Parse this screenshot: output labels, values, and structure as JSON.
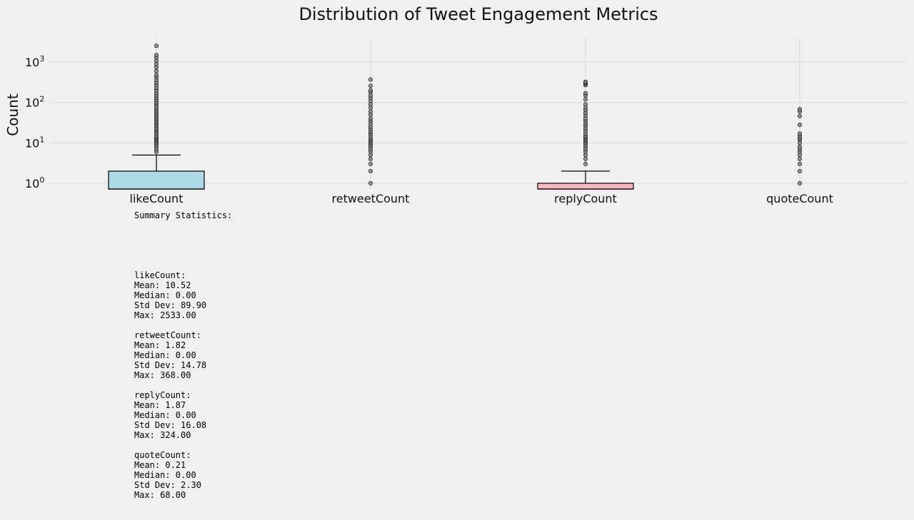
{
  "chart_data": {
    "type": "box",
    "title": "Distribution of Tweet Engagement Metrics",
    "xlabel": "",
    "ylabel": "Count",
    "yscale": "log",
    "ylim": [
      0.72,
      4000
    ],
    "yticks": [
      {
        "value": 1,
        "base": "10",
        "exp": "0"
      },
      {
        "value": 10,
        "base": "10",
        "exp": "1"
      },
      {
        "value": 100,
        "base": "10",
        "exp": "2"
      },
      {
        "value": 1000,
        "base": "10",
        "exp": "3"
      }
    ],
    "grid": true,
    "categories": [
      "likeCount",
      "retweetCount",
      "replyCount",
      "quoteCount"
    ],
    "boxes": [
      {
        "name": "likeCount",
        "q1": 0,
        "median": 0,
        "q3": 2,
        "whisker_low": 0,
        "whisker_high": 5,
        "color": "#add8e6",
        "outliers": [
          6,
          7,
          8,
          9,
          10,
          11,
          12,
          13,
          14,
          15,
          17,
          19,
          21,
          23,
          26,
          29,
          32,
          36,
          40,
          45,
          50,
          56,
          63,
          70,
          80,
          90,
          100,
          115,
          130,
          150,
          170,
          200,
          230,
          270,
          310,
          360,
          420,
          480,
          600,
          750,
          900,
          1100,
          1300,
          1500,
          2533
        ]
      },
      {
        "name": "retweetCount",
        "q1": 0,
        "median": 0,
        "q3": 0,
        "whisker_low": 0,
        "whisker_high": 0,
        "color": "#90ee90",
        "outliers": [
          1,
          2,
          3,
          4,
          5,
          6,
          7,
          8,
          9,
          10,
          11,
          12,
          13,
          15,
          17,
          19,
          22,
          25,
          30,
          35,
          40,
          50,
          60,
          75,
          90,
          110,
          130,
          150,
          180,
          200,
          260,
          368
        ]
      },
      {
        "name": "replyCount",
        "q1": 0,
        "median": 0,
        "q3": 1,
        "whisker_low": 0,
        "whisker_high": 2,
        "color": "#ffb6c1",
        "outliers": [
          3,
          4,
          5,
          6,
          7,
          8,
          9,
          10,
          11,
          12,
          13,
          14,
          15,
          17,
          20,
          23,
          27,
          30,
          35,
          40,
          48,
          55,
          65,
          75,
          90,
          120,
          150,
          170,
          270,
          290,
          310,
          324
        ]
      },
      {
        "name": "quoteCount",
        "q1": 0,
        "median": 0,
        "q3": 0,
        "whisker_low": 0,
        "whisker_high": 0,
        "color": "#ffffe0",
        "outliers": [
          1,
          2,
          3,
          4,
          5,
          6,
          7,
          8,
          10,
          12,
          13,
          15,
          17,
          28,
          46,
          60,
          68
        ]
      }
    ],
    "colors": {
      "box_edge": "#000000",
      "outlier_fill": "#808080",
      "median": "#000000"
    }
  },
  "stats": {
    "title": "Summary Statistics:",
    "blocks": [
      {
        "name": "likeCount:",
        "lines": [
          "Mean: 10.52",
          "Median: 0.00",
          "Std Dev: 89.90",
          "Max: 2533.00"
        ]
      },
      {
        "name": "retweetCount:",
        "lines": [
          "Mean: 1.82",
          "Median: 0.00",
          "Std Dev: 14.78",
          "Max: 368.00"
        ]
      },
      {
        "name": "replyCount:",
        "lines": [
          "Mean: 1.87",
          "Median: 0.00",
          "Std Dev: 16.08",
          "Max: 324.00"
        ]
      },
      {
        "name": "quoteCount:",
        "lines": [
          "Mean: 0.21",
          "Median: 0.00",
          "Std Dev: 2.30",
          "Max: 68.00"
        ]
      }
    ]
  }
}
